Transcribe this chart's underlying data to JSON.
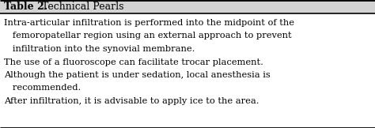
{
  "title_bold": "Table 2.",
  "title_regular": " Technical Pearls",
  "body_lines": [
    "Intra-articular infiltration is performed into the midpoint of the",
    "   femoropatellar region using an external approach to prevent",
    "   infiltration into the synovial membrane.",
    "The use of a fluoroscope can facilitate trocar placement.",
    "Although the patient is under sedation, local anesthesia is",
    "   recommended.",
    "After infiltration, it is advisable to apply ice to the area."
  ],
  "bg_color": "#ffffff",
  "header_bg": "#d3d3d3",
  "border_color": "#000000",
  "text_color": "#000000",
  "body_font_size": 8.2,
  "title_font_size": 9.0,
  "fig_width": 4.74,
  "fig_height": 1.62,
  "dpi": 100
}
